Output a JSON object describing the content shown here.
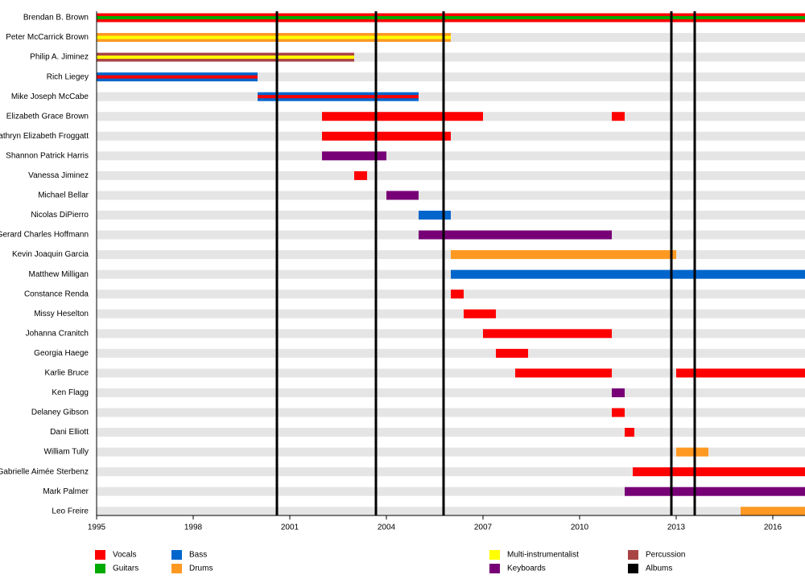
{
  "chart_data": {
    "type": "timeline",
    "xlim": [
      1995,
      2017
    ],
    "xticks": [
      1995,
      1998,
      2001,
      2004,
      2007,
      2010,
      2013,
      2016
    ],
    "roles": [
      {
        "name": "Vocals",
        "color": "#ff0000"
      },
      {
        "name": "Guitars",
        "color": "#00aa00"
      },
      {
        "name": "Bass",
        "color": "#0066cc"
      },
      {
        "name": "Drums",
        "color": "#ff9922"
      },
      {
        "name": "Multi-instrumentalist",
        "color": "#ffff00"
      },
      {
        "name": "Keyboards",
        "color": "#770077"
      },
      {
        "name": "Percussion",
        "color": "#aa4444"
      },
      {
        "name": "Albums",
        "color": "#000000"
      }
    ],
    "albums": [
      2000.6,
      2003.675,
      2005.775,
      2012.85,
      2013.575
    ],
    "members": [
      {
        "name": "Brendan B. Brown",
        "spans": [
          {
            "start": 1995,
            "end": 2017,
            "role": "Vocals",
            "stripe": "Guitars"
          }
        ]
      },
      {
        "name": "Peter McCarrick Brown",
        "spans": [
          {
            "start": 1995,
            "end": 2006,
            "role": "Drums",
            "stripe": "Multi-instrumentalist"
          }
        ]
      },
      {
        "name": "Philip A. Jiminez",
        "spans": [
          {
            "start": 1995,
            "end": 2003,
            "role": "Percussion",
            "stripe": "Multi-instrumentalist"
          }
        ]
      },
      {
        "name": "Rich Liegey",
        "spans": [
          {
            "start": 1995,
            "end": 2000,
            "role": "Bass",
            "stripe": "Vocals"
          }
        ]
      },
      {
        "name": "Mike Joseph McCabe",
        "spans": [
          {
            "start": 2000,
            "end": 2005,
            "role": "Bass",
            "stripe": "Vocals"
          }
        ]
      },
      {
        "name": "Elizabeth Grace Brown",
        "spans": [
          {
            "start": 2002,
            "end": 2007,
            "role": "Vocals"
          },
          {
            "start": 2011,
            "end": 2011.4,
            "role": "Vocals"
          }
        ]
      },
      {
        "name": "Kathryn Elizabeth Froggatt",
        "spans": [
          {
            "start": 2002,
            "end": 2006,
            "role": "Vocals"
          }
        ]
      },
      {
        "name": "Shannon Patrick Harris",
        "spans": [
          {
            "start": 2002,
            "end": 2004,
            "role": "Keyboards"
          }
        ]
      },
      {
        "name": "Vanessa Jiminez",
        "spans": [
          {
            "start": 2003,
            "end": 2003.4,
            "role": "Vocals"
          }
        ]
      },
      {
        "name": "Michael Bellar",
        "spans": [
          {
            "start": 2004,
            "end": 2005,
            "role": "Keyboards"
          }
        ]
      },
      {
        "name": "Nicolas DiPierro",
        "spans": [
          {
            "start": 2005,
            "end": 2006,
            "role": "Bass"
          }
        ]
      },
      {
        "name": "Gerard Charles Hoffmann",
        "spans": [
          {
            "start": 2005,
            "end": 2011,
            "role": "Keyboards"
          }
        ]
      },
      {
        "name": "Kevin Joaquin Garcia",
        "spans": [
          {
            "start": 2006,
            "end": 2013,
            "role": "Drums"
          }
        ]
      },
      {
        "name": "Matthew Milligan",
        "spans": [
          {
            "start": 2006,
            "end": 2017,
            "role": "Bass"
          }
        ]
      },
      {
        "name": "Constance Renda",
        "spans": [
          {
            "start": 2006,
            "end": 2006.4,
            "role": "Vocals"
          }
        ]
      },
      {
        "name": "Missy Heselton",
        "spans": [
          {
            "start": 2006.4,
            "end": 2007.4,
            "role": "Vocals"
          }
        ]
      },
      {
        "name": "Johanna Cranitch",
        "spans": [
          {
            "start": 2007,
            "end": 2011,
            "role": "Vocals"
          }
        ]
      },
      {
        "name": "Georgia Haege",
        "spans": [
          {
            "start": 2007.4,
            "end": 2008.4,
            "role": "Vocals"
          }
        ]
      },
      {
        "name": "Karlie Bruce",
        "spans": [
          {
            "start": 2008,
            "end": 2011,
            "role": "Vocals"
          },
          {
            "start": 2013,
            "end": 2017,
            "role": "Vocals"
          }
        ]
      },
      {
        "name": "Ken Flagg",
        "spans": [
          {
            "start": 2011,
            "end": 2011.4,
            "role": "Keyboards"
          }
        ]
      },
      {
        "name": "Delaney Gibson",
        "spans": [
          {
            "start": 2011,
            "end": 2011.4,
            "role": "Vocals"
          }
        ]
      },
      {
        "name": "Dani Elliott",
        "spans": [
          {
            "start": 2011.4,
            "end": 2011.7,
            "role": "Vocals"
          }
        ]
      },
      {
        "name": "William Tully",
        "spans": [
          {
            "start": 2013,
            "end": 2014,
            "role": "Drums"
          }
        ]
      },
      {
        "name": "Gabrielle Aimée Sterbenz",
        "spans": [
          {
            "start": 2011.65,
            "end": 2017,
            "role": "Vocals"
          }
        ]
      },
      {
        "name": "Mark Palmer",
        "spans": [
          {
            "start": 2011.4,
            "end": 2017,
            "role": "Keyboards"
          }
        ]
      },
      {
        "name": "Leo Freire",
        "spans": [
          {
            "start": 2015,
            "end": 2017,
            "role": "Drums"
          }
        ]
      }
    ]
  }
}
